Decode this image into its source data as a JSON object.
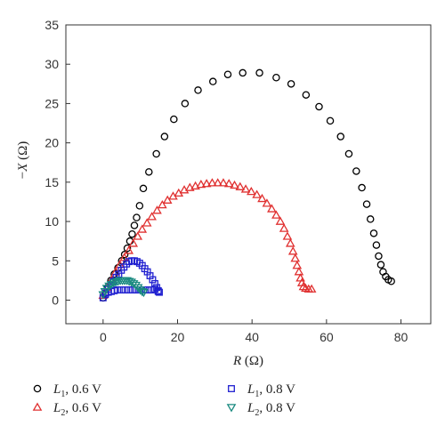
{
  "chart_data": {
    "type": "scatter",
    "xlabel_italic": "R",
    "xlabel_unit": " (Ω)",
    "ylabel_prefix": "−",
    "ylabel_italic": "X",
    "ylabel_unit": " (Ω)",
    "xlim": [
      -10,
      88
    ],
    "ylim": [
      -3,
      35
    ],
    "xticks": [
      0,
      20,
      40,
      60,
      80
    ],
    "yticks": [
      0,
      5,
      10,
      15,
      20,
      25,
      30,
      35
    ],
    "legend_position": "bottom",
    "series": [
      {
        "name_main": "L",
        "name_sub": "1",
        "name_rest": ", 0.6 V",
        "marker": "circle",
        "color": "#000000",
        "points": [
          [
            0,
            0.3
          ],
          [
            0.5,
            0.8
          ],
          [
            1.2,
            1.6
          ],
          [
            2.1,
            2.5
          ],
          [
            3,
            3.3
          ],
          [
            4,
            4.1
          ],
          [
            5,
            5.0
          ],
          [
            5.8,
            5.8
          ],
          [
            6.5,
            6.6
          ],
          [
            7.2,
            7.5
          ],
          [
            7.8,
            8.4
          ],
          [
            8.4,
            9.5
          ],
          [
            9,
            10.5
          ],
          [
            9.8,
            12
          ],
          [
            10.8,
            14.2
          ],
          [
            12.3,
            16.3
          ],
          [
            14.3,
            18.6
          ],
          [
            16.5,
            20.8
          ],
          [
            19,
            23
          ],
          [
            22,
            25
          ],
          [
            25.5,
            26.7
          ],
          [
            29.5,
            27.8
          ],
          [
            33.5,
            28.7
          ],
          [
            37.5,
            28.9
          ],
          [
            42,
            28.9
          ],
          [
            46.5,
            28.3
          ],
          [
            50.5,
            27.5
          ],
          [
            54.5,
            26.1
          ],
          [
            58,
            24.6
          ],
          [
            61,
            22.8
          ],
          [
            63.8,
            20.8
          ],
          [
            66,
            18.6
          ],
          [
            68,
            16.4
          ],
          [
            69.5,
            14.3
          ],
          [
            70.8,
            12.2
          ],
          [
            71.8,
            10.3
          ],
          [
            72.7,
            8.5
          ],
          [
            73.4,
            7
          ],
          [
            74,
            5.6
          ],
          [
            74.6,
            4.5
          ],
          [
            75.2,
            3.6
          ],
          [
            75.9,
            3
          ],
          [
            76.6,
            2.6
          ],
          [
            77.4,
            2.4
          ]
        ]
      },
      {
        "name_main": "L",
        "name_sub": "2",
        "name_rest": ", 0.6 V",
        "marker": "triangle-up",
        "color": "#e03030",
        "points": [
          [
            0,
            0.6
          ],
          [
            1.2,
            1.6
          ],
          [
            2.3,
            2.6
          ],
          [
            3.4,
            3.6
          ],
          [
            4.5,
            4.5
          ],
          [
            5.7,
            5.4
          ],
          [
            6.9,
            6.3
          ],
          [
            8.1,
            7.2
          ],
          [
            9.3,
            8.1
          ],
          [
            10.5,
            9
          ],
          [
            11.8,
            9.8
          ],
          [
            13.1,
            10.6
          ],
          [
            14.5,
            11.4
          ],
          [
            15.9,
            12.1
          ],
          [
            17.3,
            12.7
          ],
          [
            18.8,
            13.2
          ],
          [
            20.3,
            13.6
          ],
          [
            21.8,
            14
          ],
          [
            23.3,
            14.3
          ],
          [
            24.8,
            14.5
          ],
          [
            26.3,
            14.7
          ],
          [
            27.8,
            14.8
          ],
          [
            29.3,
            14.9
          ],
          [
            30.8,
            14.9
          ],
          [
            32.3,
            14.9
          ],
          [
            33.8,
            14.8
          ],
          [
            35.3,
            14.6
          ],
          [
            36.8,
            14.4
          ],
          [
            38.3,
            14.1
          ],
          [
            39.8,
            13.8
          ],
          [
            41.3,
            13.4
          ],
          [
            42.7,
            12.9
          ],
          [
            44,
            12.3
          ],
          [
            45.3,
            11.6
          ],
          [
            46.5,
            10.8
          ],
          [
            47.6,
            10
          ],
          [
            48.6,
            9.1
          ],
          [
            49.5,
            8.1
          ],
          [
            50.3,
            7.2
          ],
          [
            51,
            6.2
          ],
          [
            51.6,
            5.3
          ],
          [
            52.1,
            4.4
          ],
          [
            52.6,
            3.6
          ],
          [
            53,
            2.8
          ],
          [
            53.4,
            2.2
          ],
          [
            53.8,
            1.7
          ],
          [
            54.4,
            1.5
          ],
          [
            55.2,
            1.4
          ],
          [
            56,
            1.4
          ]
        ]
      },
      {
        "name_main": "L",
        "name_sub": "1",
        "name_rest": ", 0.8 V",
        "marker": "square",
        "color": "#2020d0",
        "points": [
          [
            0,
            0.3
          ],
          [
            0.7,
            0.9
          ],
          [
            1.4,
            1.4
          ],
          [
            2.1,
            1.9
          ],
          [
            2.8,
            2.4
          ],
          [
            3.5,
            2.9
          ],
          [
            4.2,
            3.3
          ],
          [
            4.9,
            3.8
          ],
          [
            5.6,
            4.2
          ],
          [
            6.3,
            4.6
          ],
          [
            7,
            4.9
          ],
          [
            7.7,
            5
          ],
          [
            8.4,
            5
          ],
          [
            9.1,
            4.9
          ],
          [
            9.8,
            4.7
          ],
          [
            10.5,
            4.4
          ],
          [
            11.2,
            4
          ],
          [
            11.9,
            3.6
          ],
          [
            12.6,
            3.1
          ],
          [
            13.3,
            2.6
          ],
          [
            13.9,
            2.1
          ],
          [
            14.4,
            1.6
          ],
          [
            14.8,
            1.2
          ],
          [
            15.1,
            1
          ],
          [
            14.8,
            1.1
          ],
          [
            13.9,
            1.4
          ],
          [
            12.9,
            1.3
          ],
          [
            11.9,
            1.3
          ],
          [
            10.9,
            1.3
          ],
          [
            9.9,
            1.3
          ],
          [
            8.9,
            1.3
          ],
          [
            7.9,
            1.3
          ],
          [
            6.9,
            1.3
          ],
          [
            5.9,
            1.3
          ],
          [
            4.9,
            1.3
          ],
          [
            3.9,
            1.3
          ],
          [
            3,
            1.2
          ],
          [
            2.2,
            1.1
          ],
          [
            1.4,
            1
          ],
          [
            0.6,
            0.7
          ]
        ]
      },
      {
        "name_main": "L",
        "name_sub": "2",
        "name_rest": ", 0.8 V",
        "marker": "triangle-down",
        "color": "#1a8a80",
        "points": [
          [
            0,
            0.7
          ],
          [
            0.5,
            1.1
          ],
          [
            1,
            1.5
          ],
          [
            1.6,
            1.8
          ],
          [
            2.2,
            2
          ],
          [
            2.8,
            2.2
          ],
          [
            3.4,
            2.3
          ],
          [
            4,
            2.4
          ],
          [
            4.6,
            2.5
          ],
          [
            5.2,
            2.5
          ],
          [
            5.8,
            2.5
          ],
          [
            6.4,
            2.5
          ],
          [
            7,
            2.4
          ],
          [
            7.6,
            2.3
          ],
          [
            8.2,
            2.1
          ],
          [
            8.8,
            1.9
          ],
          [
            9.4,
            1.6
          ],
          [
            10,
            1.3
          ],
          [
            10.5,
            1.1
          ],
          [
            10.9,
            1
          ]
        ]
      }
    ]
  }
}
